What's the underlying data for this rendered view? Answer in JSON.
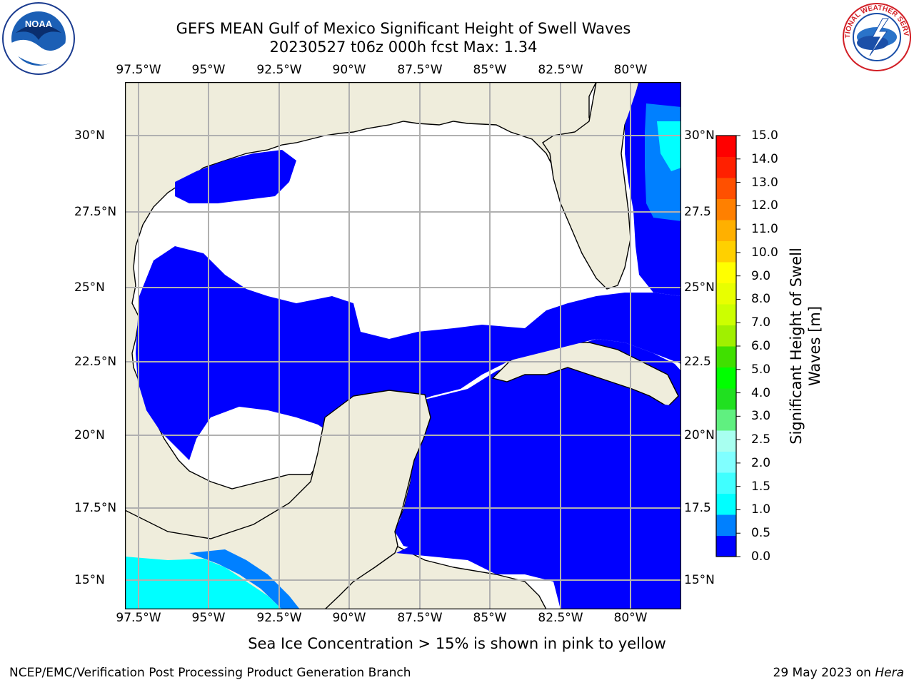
{
  "title": {
    "line1": "GEFS MEAN Gulf of Mexico Significant Height of Swell Waves",
    "line2": "20230527 t06z 000h fcst   Max: 1.34"
  },
  "map": {
    "lon_labels": [
      "97.5°W",
      "95°W",
      "92.5°W",
      "90°W",
      "87.5°W",
      "85°W",
      "82.5°W",
      "80°W"
    ],
    "lat_labels": [
      "30°N",
      "27.5°N",
      "25°N",
      "22.5°N",
      "20°N",
      "17.5°N",
      "15°N"
    ],
    "right_lat_labels": [
      "30°N",
      "27.5",
      "25°N",
      "22.5",
      "20°N",
      "17.5",
      "15°N"
    ],
    "land_color": "#efeddc",
    "zero_color": "#ffffff",
    "grid": true
  },
  "colorbar": {
    "title_line1": "Significant Height of Swell",
    "title_line2": "Waves [m]",
    "ticks": [
      "0.0",
      "0.5",
      "1.0",
      "1.5",
      "2.0",
      "2.5",
      "3.0",
      "4.0",
      "5.0",
      "6.0",
      "7.0",
      "8.0",
      "9.0",
      "10.0",
      "11.0",
      "12.0",
      "13.0",
      "14.0",
      "15.0"
    ],
    "colors": [
      "#0000ff",
      "#0080ff",
      "#00ffff",
      "#40ffff",
      "#80ffff",
      "#a8fff0",
      "#60f080",
      "#20e020",
      "#00ff00",
      "#40e000",
      "#a0f000",
      "#ccff00",
      "#e8ff00",
      "#ffff00",
      "#ffd000",
      "#ffb000",
      "#ff8000",
      "#ff5000",
      "#ff2000",
      "#ff0000"
    ]
  },
  "note": "Sea Ice Concentration > 15% is shown in pink to yellow",
  "footer": {
    "left": "NCEP/EMC/Verification Post Processing Product Generation Branch",
    "right_date": "29 May 2023 on ",
    "right_host": "Hera"
  },
  "logos": {
    "noaa": "NOAA",
    "nws_text": "NATIONAL WEATHER SERVICE"
  }
}
